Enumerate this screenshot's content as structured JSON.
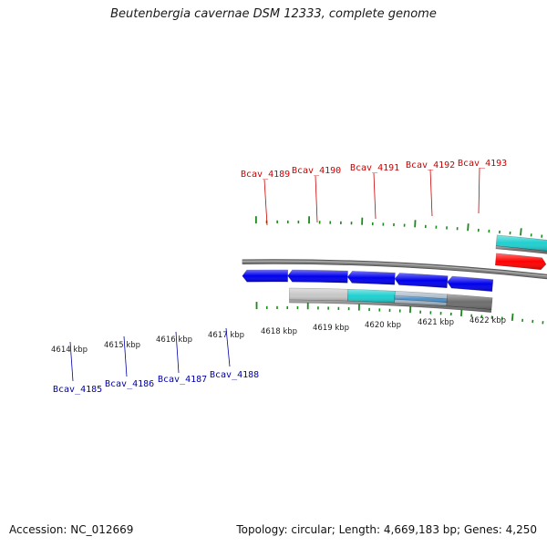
{
  "title": "Beutenbergia cavernae DSM 12333, complete genome",
  "footer": {
    "accession": "Accession: NC_012669",
    "topology": "Topology: circular; Length: 4,669,183 bp; Genes: 4,250"
  },
  "colors": {
    "forward_cds": "#ff0000",
    "reverse_cds": "#0000ee",
    "backbone": "#808080",
    "tick": "#1a8a1a",
    "forward_label": "#cc0000",
    "reverse_label": "#0000aa",
    "cyan_feature": "#1fcfcf",
    "orange_feature": "#f39c12",
    "lightgray_feature": "#c8c8c8",
    "darkgray_feature": "#6e6e6e",
    "navy_feature": "#0a0a6e"
  },
  "kbp_labels": [
    "4614 kbp",
    "4615 kbp",
    "4616 kbp",
    "4617 kbp",
    "4618 kbp",
    "4619 kbp",
    "4620 kbp",
    "4621 kbp",
    "4622 kbp"
  ],
  "forward_gene_labels": [
    "Bcav_4189",
    "Bcav_4190",
    "Bcav_4191",
    "Bcav_4192",
    "Bcav_4193"
  ],
  "reverse_gene_labels": [
    "Bcav_4185",
    "Bcav_4186",
    "Bcav_4187",
    "Bcav_4188"
  ]
}
